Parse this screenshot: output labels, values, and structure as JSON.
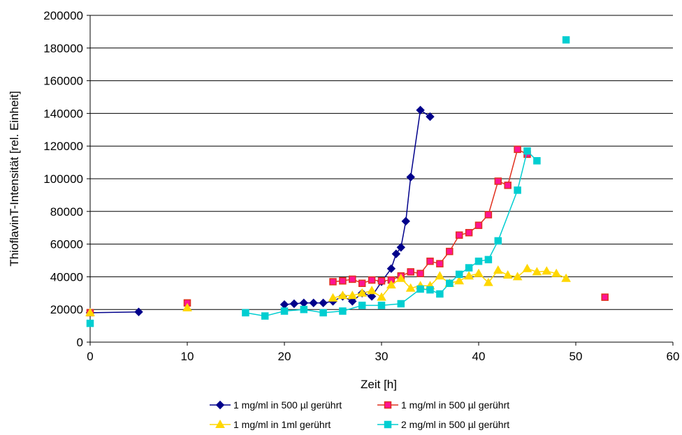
{
  "chart_data": {
    "type": "scatter",
    "xlabel": "Zeit [h]",
    "ylabel": "ThioflavinT-Intensität [rel. Einheit]",
    "xlim": [
      0,
      60
    ],
    "ylim": [
      0,
      200000
    ],
    "x_ticks": [
      "0",
      "10",
      "20",
      "30",
      "40",
      "50",
      "60"
    ],
    "y_ticks": [
      "0",
      "20000",
      "40000",
      "60000",
      "80000",
      "100000",
      "120000",
      "140000",
      "160000",
      "180000",
      "200000"
    ],
    "grid": "horizontal",
    "legend_position": "bottom",
    "series": [
      {
        "name": "1 mg/ml in 500 µl gerührt",
        "color": "#00008b",
        "marker": "diamond",
        "connect": true,
        "points": [
          [
            0,
            18000
          ],
          [
            5,
            18500
          ],
          [
            20,
            23000
          ],
          [
            21,
            23500
          ],
          [
            22,
            24000
          ],
          [
            23,
            24000
          ],
          [
            24,
            24000
          ],
          [
            25,
            25000
          ],
          [
            26,
            28000
          ],
          [
            27,
            25000
          ],
          [
            28,
            30000
          ],
          [
            29,
            28000
          ],
          [
            30,
            37000
          ],
          [
            31,
            45000
          ],
          [
            31.5,
            54000
          ],
          [
            32,
            58000
          ],
          [
            32.5,
            74000
          ],
          [
            33,
            101000
          ],
          [
            34,
            142000
          ],
          [
            35,
            138000
          ]
        ]
      },
      {
        "name": "1 mg/ml in 500 µl gerührt",
        "color": "#ff1493",
        "edge_color": "#e0301e",
        "marker": "square",
        "connect": true,
        "points": [
          [
            0,
            18000
          ],
          [
            10,
            24000
          ],
          [
            25,
            37000
          ],
          [
            26,
            37500
          ],
          [
            27,
            38500
          ],
          [
            28,
            36000
          ],
          [
            29,
            38000
          ],
          [
            30,
            37500
          ],
          [
            31,
            38000
          ],
          [
            32,
            40500
          ],
          [
            33,
            43000
          ],
          [
            34,
            42000
          ],
          [
            35,
            49500
          ],
          [
            36,
            48000
          ],
          [
            37,
            55500
          ],
          [
            38,
            65500
          ],
          [
            39,
            67000
          ],
          [
            40,
            71500
          ],
          [
            41,
            78000
          ],
          [
            42,
            98500
          ],
          [
            43,
            96000
          ],
          [
            44,
            118000
          ],
          [
            45,
            115000
          ],
          [
            53,
            27500
          ]
        ]
      },
      {
        "name": "1 mg/ml in 1ml gerührt",
        "color": "#ffd700",
        "marker": "triangle",
        "connect": true,
        "points": [
          [
            0,
            18000
          ],
          [
            10,
            21000
          ],
          [
            25,
            27000
          ],
          [
            26,
            28500
          ],
          [
            27,
            28500
          ],
          [
            28,
            30000
          ],
          [
            29,
            31500
          ],
          [
            30,
            27500
          ],
          [
            31,
            35000
          ],
          [
            32,
            39000
          ],
          [
            33,
            33000
          ],
          [
            34,
            34500
          ],
          [
            35,
            34500
          ],
          [
            36,
            40500
          ],
          [
            37,
            36000
          ],
          [
            38,
            37500
          ],
          [
            39,
            40500
          ],
          [
            40,
            42000
          ],
          [
            41,
            36500
          ],
          [
            42,
            44000
          ],
          [
            43,
            41000
          ],
          [
            44,
            40000
          ],
          [
            45,
            45000
          ],
          [
            46,
            43000
          ],
          [
            47,
            43500
          ],
          [
            48,
            42000
          ],
          [
            49,
            39000
          ]
        ]
      },
      {
        "name": "2 mg/ml in 500 µl gerührt",
        "color": "#00ced1",
        "marker": "square",
        "connect": true,
        "points": [
          [
            0,
            11500
          ],
          [
            16,
            18000
          ],
          [
            18,
            16000
          ],
          [
            20,
            19000
          ],
          [
            22,
            20000
          ],
          [
            24,
            18000
          ],
          [
            26,
            19000
          ],
          [
            28,
            22500
          ],
          [
            30,
            22500
          ],
          [
            32,
            23500
          ],
          [
            34,
            32500
          ],
          [
            35,
            32000
          ],
          [
            36,
            29500
          ],
          [
            37,
            36000
          ],
          [
            38,
            41500
          ],
          [
            39,
            45500
          ],
          [
            40,
            49500
          ],
          [
            41,
            50500
          ],
          [
            42,
            62000
          ],
          [
            44,
            93000
          ],
          [
            45,
            117000
          ],
          [
            46,
            111000
          ],
          [
            49,
            185000
          ]
        ]
      }
    ]
  }
}
